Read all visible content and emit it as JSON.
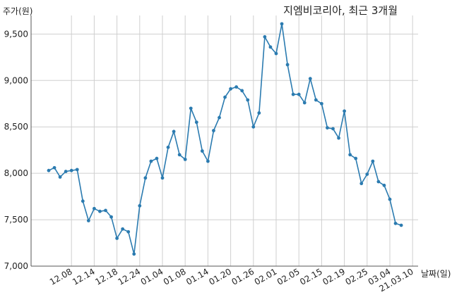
{
  "chart_data": {
    "type": "line",
    "title": "지엠비코리아, 최근 3개월",
    "ylabel": "주가(원)",
    "xlabel": "날짜(일)",
    "ylim": [
      7000,
      9700
    ],
    "yticks": [
      7000,
      7500,
      8000,
      8500,
      9000,
      9500
    ],
    "ytick_labels": [
      "7,000",
      "7,500",
      "8,000",
      "8,500",
      "9,000",
      "9,500"
    ],
    "xtick_labels": [
      "12.08",
      "12.14",
      "12.18",
      "12.24",
      "01.04",
      "01.08",
      "01.14",
      "01.20",
      "01.26",
      "02.01",
      "02.05",
      "02.15",
      "02.19",
      "02.25",
      "03.04",
      "21.03.10"
    ],
    "xtick_index": [
      4,
      8,
      12,
      16,
      20,
      24,
      28,
      32,
      36,
      40,
      44,
      48,
      52,
      56,
      60,
      64
    ],
    "grid": true,
    "line_color": "#2b7bb0",
    "series": [
      {
        "values": [
          8030,
          8060,
          7960,
          8020,
          8030,
          8040,
          7700,
          7490,
          7620,
          7590,
          7600,
          7530,
          7300,
          7400,
          7370,
          7130,
          7650,
          7950,
          8130,
          8160,
          7950,
          8280,
          8450,
          8200,
          8150,
          8700,
          8550,
          8240,
          8130,
          8460,
          8600,
          8820,
          8910,
          8930,
          8890,
          8790,
          8500,
          8650,
          9470,
          9360,
          9290,
          9610,
          9170,
          8850,
          8850,
          8760,
          9020,
          8790,
          8750,
          8490,
          8480,
          8380,
          8670,
          8200,
          8160,
          7890,
          7990,
          8130,
          7910,
          7870,
          7720,
          7460,
          7440
        ]
      }
    ]
  }
}
